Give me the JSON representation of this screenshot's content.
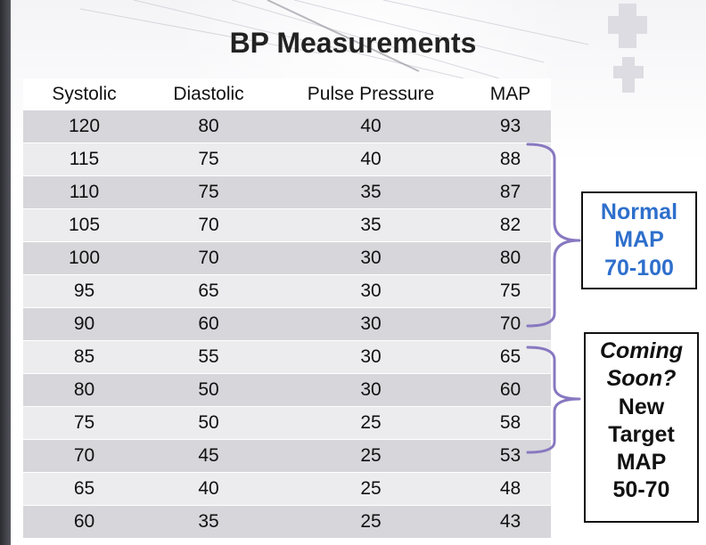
{
  "title": "BP Measurements",
  "table": {
    "headers": [
      "Systolic",
      "Diastolic",
      "Pulse Pressure",
      "MAP"
    ],
    "rows": [
      [
        "120",
        "80",
        "40",
        "93"
      ],
      [
        "115",
        "75",
        "40",
        "88"
      ],
      [
        "110",
        "75",
        "35",
        "87"
      ],
      [
        "105",
        "70",
        "35",
        "82"
      ],
      [
        "100",
        "70",
        "30",
        "80"
      ],
      [
        "95",
        "65",
        "30",
        "75"
      ],
      [
        "90",
        "60",
        "30",
        "70"
      ],
      [
        "85",
        "55",
        "30",
        "65"
      ],
      [
        "80",
        "50",
        "30",
        "60"
      ],
      [
        "75",
        "50",
        "25",
        "58"
      ],
      [
        "70",
        "45",
        "25",
        "53"
      ],
      [
        "65",
        "40",
        "25",
        "48"
      ],
      [
        "60",
        "35",
        "25",
        "43"
      ]
    ]
  },
  "callouts": {
    "normal": {
      "line1": "Normal",
      "line2": "MAP",
      "line3": "70-100"
    },
    "coming": {
      "line1": "Coming",
      "line2": "Soon?",
      "line3": "New",
      "line4": "Target",
      "line5": "MAP",
      "line6": "50-70"
    }
  },
  "colors": {
    "bracket": "#8878c0",
    "normal_text": "#2e6fcc",
    "row_dark": "#d6d6db",
    "row_light": "#ececee"
  }
}
